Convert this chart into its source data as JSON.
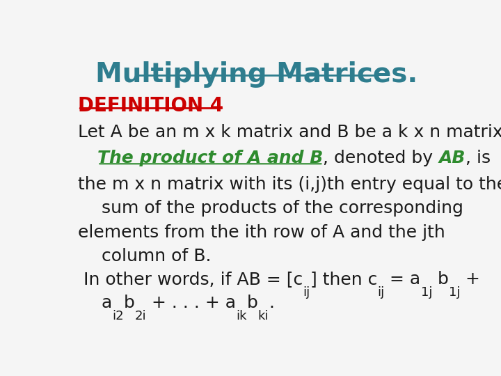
{
  "title": "Multiplying Matrices.",
  "title_color": "#2e7d8e",
  "title_fontsize": 28,
  "background_color": "#f5f5f5",
  "def_label": "DEFINITION 4",
  "def_color": "#cc0000",
  "def_fontsize": 20,
  "line1": "Let A be an m x k matrix and B be a k x n matrix.",
  "line2_green": "The product of A and B",
  "line2_black1": ", denoted by ",
  "line2_green2": "AB",
  "line2_black2": ", is",
  "line3": "the m x n matrix with its (i,j)th entry equal to the",
  "line4": "sum of the products of the corresponding",
  "line5": "elements from the ith row of A and the jth",
  "line6": "column of B.",
  "text_color": "#1a1a1a",
  "text_fontsize": 18,
  "green_color": "#2e8b2e",
  "sub_fontsize": 13
}
